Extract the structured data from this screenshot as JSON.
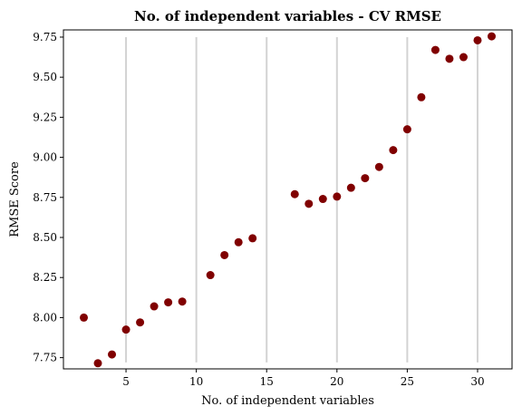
{
  "chart_data": {
    "type": "scatter",
    "title": "No. of independent variables - CV RMSE",
    "xlabel": "No. of independent variables",
    "ylabel": "RMSE Score",
    "xlim": [
      0.55,
      32.45
    ],
    "ylim": [
      7.68,
      9.795
    ],
    "x_ticks": [
      "5",
      "10",
      "15",
      "20",
      "25",
      "30"
    ],
    "y_ticks": [
      "7.75",
      "8.00",
      "8.25",
      "8.50",
      "8.75",
      "9.00",
      "9.25",
      "9.50",
      "9.75"
    ],
    "vlines": {
      "x": [
        5,
        10,
        15,
        20,
        25,
        30
      ],
      "ymin": 7.72,
      "ymax": 9.75,
      "color": "#d3d3d3"
    },
    "marker_color": "#800000",
    "x": [
      2,
      3,
      4,
      5,
      6,
      7,
      8,
      9,
      11,
      12,
      13,
      14,
      17,
      18,
      19,
      20,
      21,
      22,
      23,
      24,
      25,
      26,
      27,
      28,
      29,
      30,
      31
    ],
    "y": [
      8.0,
      7.715,
      7.77,
      7.925,
      7.97,
      8.07,
      8.095,
      8.1,
      8.265,
      8.39,
      8.47,
      8.495,
      8.77,
      8.71,
      8.74,
      8.755,
      8.81,
      8.87,
      8.94,
      9.045,
      9.175,
      9.375,
      9.67,
      9.615,
      9.625,
      9.73,
      9.755
    ],
    "grid": false,
    "legend": "none"
  }
}
